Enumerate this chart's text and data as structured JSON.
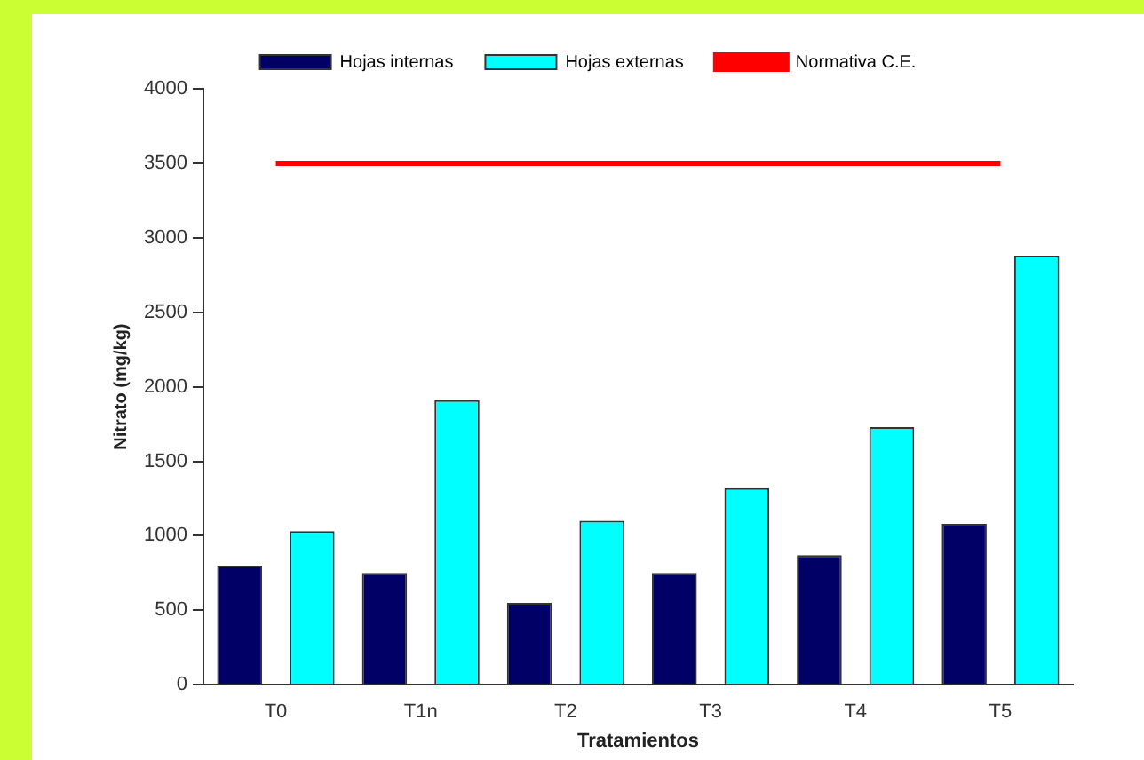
{
  "chart_data": {
    "type": "bar",
    "xlabel": "Tratamientos",
    "ylabel": "Nitrato (mg/kg)",
    "categories": [
      "T0",
      "T1n",
      "T2",
      "T3",
      "T4",
      "T5"
    ],
    "series": [
      {
        "name": "Hojas internas",
        "color": "#000066",
        "values": [
          800,
          750,
          550,
          750,
          870,
          1080
        ]
      },
      {
        "name": "Hojas externas",
        "color": "#00ffff",
        "values": [
          1030,
          1910,
          1100,
          1320,
          1730,
          2880
        ]
      },
      {
        "name": "Normativa C.E.",
        "type": "line",
        "color": "#ff0000",
        "marker": "none",
        "values": [
          3500,
          3500,
          3500,
          3500,
          3500,
          3500
        ]
      }
    ],
    "ylim": [
      0,
      4000
    ],
    "yticks": [
      0,
      500,
      1000,
      1500,
      2000,
      2500,
      3000,
      3500,
      4000
    ],
    "grid": false,
    "legend": "top"
  }
}
